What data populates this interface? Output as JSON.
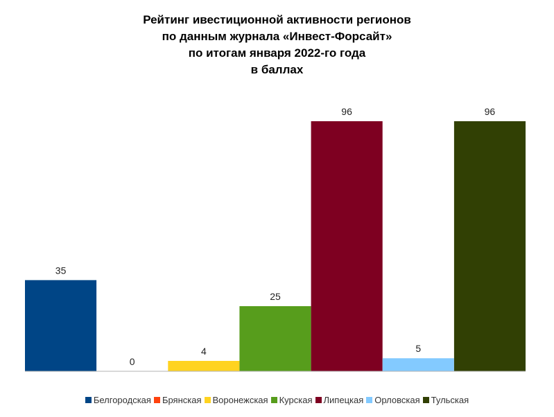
{
  "chart_data": {
    "type": "bar",
    "title": [
      "Рейтинг ивестиционной активности регионов",
      "по данным журнала «Инвест-Форсайт»",
      "по итогам января 2022-го года",
      "в баллах"
    ],
    "xlabel": "",
    "ylabel": "",
    "ylim": [
      0,
      100
    ],
    "grid": false,
    "legend_position": "bottom",
    "series": [
      {
        "name": "Белгородская",
        "value": 35,
        "label": "35",
        "color": "#004586"
      },
      {
        "name": "Брянская",
        "value": 0,
        "label": "0",
        "color": "#ff420e"
      },
      {
        "name": "Воронежская",
        "value": 4,
        "label": "4",
        "color": "#ffd320"
      },
      {
        "name": "Курская",
        "value": 25,
        "label": "25",
        "color": "#579d1c"
      },
      {
        "name": "Липецкая",
        "value": 96,
        "label": "96",
        "color": "#7e0021"
      },
      {
        "name": "Орловская",
        "value": 5,
        "label": "5",
        "color": "#83caff"
      },
      {
        "name": "Тульская",
        "value": 96,
        "label": "96",
        "color": "#314004"
      }
    ]
  }
}
